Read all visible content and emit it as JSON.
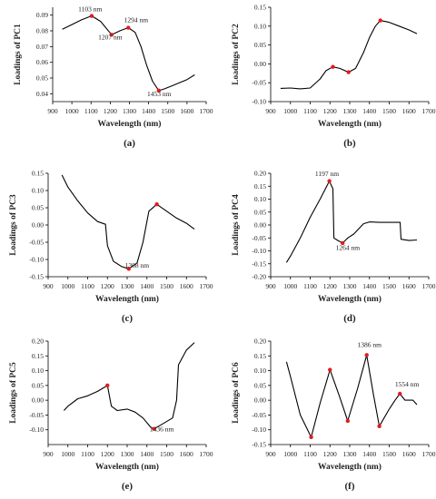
{
  "figure": {
    "subfigure_labels": [
      "(a)",
      "(b)",
      "(c)",
      "(d)",
      "(e)",
      "(f)"
    ]
  },
  "chart_data": [
    {
      "type": "line",
      "panel_label": "(a)",
      "xlabel": "Wavelength (nm)",
      "ylabel": "Loadings of PC1",
      "xlim": [
        900,
        1700
      ],
      "ylim": [
        0.035,
        0.095
      ],
      "xticks": [
        900,
        1000,
        1100,
        1200,
        1300,
        1400,
        1500,
        1600,
        1700
      ],
      "yticks": [
        0.04,
        0.05,
        0.06,
        0.07,
        0.08,
        0.09
      ],
      "ytick_labels": [
        "0.04",
        "0.05",
        "0.06",
        "0.07",
        "0.08",
        "0.09"
      ],
      "series": [
        {
          "x": [
            950,
            1000,
            1050,
            1103,
            1150,
            1207,
            1250,
            1294,
            1330,
            1360,
            1390,
            1420,
            1453,
            1480,
            1520,
            1560,
            1600,
            1640
          ],
          "y": [
            0.081,
            0.084,
            0.087,
            0.0895,
            0.086,
            0.0775,
            0.08,
            0.082,
            0.079,
            0.07,
            0.058,
            0.048,
            0.042,
            0.043,
            0.045,
            0.047,
            0.049,
            0.052
          ]
        }
      ],
      "markers": [
        {
          "x": 1103,
          "y": 0.0895
        },
        {
          "x": 1207,
          "y": 0.0775
        },
        {
          "x": 1294,
          "y": 0.082
        },
        {
          "x": 1453,
          "y": 0.042
        }
      ],
      "annotations": [
        {
          "text": "1103 nm",
          "x": 1095,
          "y": 0.0925
        },
        {
          "text": "1207 nm",
          "x": 1200,
          "y": 0.0745
        },
        {
          "text": "1294 nm",
          "x": 1335,
          "y": 0.0855
        },
        {
          "text": "1453 nm",
          "x": 1455,
          "y": 0.0385
        }
      ]
    },
    {
      "type": "line",
      "panel_label": "(b)",
      "xlabel": "Wavelength (nm)",
      "ylabel": "Loadings of PC2",
      "xlim": [
        900,
        1700
      ],
      "ylim": [
        -0.1,
        0.15
      ],
      "xticks": [
        900,
        1000,
        1100,
        1200,
        1300,
        1400,
        1500,
        1600,
        1700
      ],
      "yticks": [
        -0.1,
        -0.05,
        0,
        0.05,
        0.1,
        0.15
      ],
      "ytick_labels": [
        "-0.10",
        "-0.05",
        "0.00",
        "0.05",
        "0.10",
        "0.15"
      ],
      "series": [
        {
          "x": [
            950,
            1000,
            1050,
            1100,
            1150,
            1180,
            1215,
            1250,
            1294,
            1330,
            1370,
            1400,
            1430,
            1455,
            1500,
            1550,
            1600,
            1640
          ],
          "y": [
            -0.065,
            -0.064,
            -0.066,
            -0.064,
            -0.04,
            -0.018,
            -0.008,
            -0.012,
            -0.022,
            -0.012,
            0.03,
            0.07,
            0.1,
            0.115,
            0.11,
            0.1,
            0.09,
            0.08
          ]
        }
      ],
      "markers": [
        {
          "x": 1215,
          "y": -0.008
        },
        {
          "x": 1294,
          "y": -0.022
        },
        {
          "x": 1455,
          "y": 0.115
        }
      ],
      "annotations": []
    },
    {
      "type": "line",
      "panel_label": "(c)",
      "xlabel": "Wavelength (nm)",
      "ylabel": "Loadings of PC3",
      "xlim": [
        900,
        1700
      ],
      "ylim": [
        -0.15,
        0.15
      ],
      "xticks": [
        900,
        1000,
        1100,
        1200,
        1300,
        1400,
        1500,
        1600,
        1700
      ],
      "yticks": [
        -0.15,
        -0.1,
        -0.05,
        0,
        0.05,
        0.1,
        0.15
      ],
      "ytick_labels": [
        "-0.15",
        "-0.10",
        "-0.05",
        "0.00",
        "0.05",
        "0.10",
        "0.15"
      ],
      "series": [
        {
          "x": [
            970,
            1000,
            1050,
            1100,
            1150,
            1190,
            1200,
            1230,
            1270,
            1308,
            1350,
            1380,
            1410,
            1450,
            1500,
            1550,
            1600,
            1640
          ],
          "y": [
            0.145,
            0.11,
            0.07,
            0.035,
            0.01,
            0.002,
            -0.06,
            -0.105,
            -0.12,
            -0.127,
            -0.11,
            -0.05,
            0.04,
            0.06,
            0.04,
            0.02,
            0.005,
            -0.012
          ]
        }
      ],
      "markers": [
        {
          "x": 1308,
          "y": -0.127
        },
        {
          "x": 1450,
          "y": 0.06
        }
      ],
      "annotations": [
        {
          "text": "1308 nm",
          "x": 1350,
          "y": -0.124
        }
      ]
    },
    {
      "type": "line",
      "panel_label": "(d)",
      "xlabel": "Wavelength (nm)",
      "ylabel": "Loadings of PC4",
      "xlim": [
        900,
        1700
      ],
      "ylim": [
        -0.2,
        0.2
      ],
      "xticks": [
        900,
        1000,
        1100,
        1200,
        1300,
        1400,
        1500,
        1600,
        1700
      ],
      "yticks": [
        -0.2,
        -0.15,
        -0.1,
        -0.05,
        0,
        0.05,
        0.1,
        0.15,
        0.2
      ],
      "ytick_labels": [
        "-0.20",
        "-0.15",
        "-0.10",
        "-0.05",
        "0.00",
        "0.05",
        "0.10",
        "0.15",
        "0.20"
      ],
      "series": [
        {
          "x": [
            980,
            1000,
            1050,
            1100,
            1150,
            1197,
            1215,
            1220,
            1240,
            1264,
            1290,
            1320,
            1370,
            1400,
            1450,
            1500,
            1555,
            1560,
            1600,
            1640
          ],
          "y": [
            -0.145,
            -0.12,
            -0.05,
            0.03,
            0.1,
            0.17,
            0.14,
            -0.05,
            -0.06,
            -0.07,
            -0.05,
            -0.035,
            0.005,
            0.012,
            0.01,
            0.01,
            0.01,
            -0.055,
            -0.06,
            -0.058
          ]
        }
      ],
      "markers": [
        {
          "x": 1197,
          "y": 0.17
        },
        {
          "x": 1264,
          "y": -0.07
        }
      ],
      "annotations": [
        {
          "text": "1197 nm",
          "x": 1185,
          "y": 0.19
        },
        {
          "text": "1264 nm",
          "x": 1290,
          "y": -0.097
        }
      ]
    },
    {
      "type": "line",
      "panel_label": "(e)",
      "xlabel": "Wavelength (nm)",
      "ylabel": "Loadings of PC5",
      "xlim": [
        900,
        1700
      ],
      "ylim": [
        -0.15,
        0.2
      ],
      "xticks": [
        900,
        1000,
        1100,
        1200,
        1300,
        1400,
        1500,
        1600,
        1700
      ],
      "yticks": [
        -0.1,
        -0.05,
        0,
        0.05,
        0.1,
        0.15,
        0.2
      ],
      "ytick_labels": [
        "-0.10",
        "-0.05",
        "0.00",
        "0.05",
        "0.10",
        "0.15",
        "0.20"
      ],
      "series": [
        {
          "x": [
            980,
            1000,
            1050,
            1100,
            1150,
            1200,
            1220,
            1250,
            1300,
            1340,
            1380,
            1420,
            1436,
            1480,
            1530,
            1550,
            1560,
            1600,
            1640
          ],
          "y": [
            -0.035,
            -0.02,
            0.005,
            0.015,
            0.03,
            0.05,
            -0.02,
            -0.035,
            -0.03,
            -0.04,
            -0.06,
            -0.092,
            -0.097,
            -0.08,
            -0.06,
            0.0,
            0.12,
            0.17,
            0.195
          ]
        }
      ],
      "markers": [
        {
          "x": 1200,
          "y": 0.05
        },
        {
          "x": 1436,
          "y": -0.097
        }
      ],
      "annotations": [
        {
          "text": "1436 nm",
          "x": 1475,
          "y": -0.105
        }
      ]
    },
    {
      "type": "line",
      "panel_label": "(f)",
      "xlabel": "Wavelength (nm)",
      "ylabel": "Loadings of PC6",
      "xlim": [
        900,
        1700
      ],
      "ylim": [
        -0.15,
        0.2
      ],
      "xticks": [
        900,
        1000,
        1100,
        1200,
        1300,
        1400,
        1500,
        1600,
        1700
      ],
      "yticks": [
        -0.15,
        -0.1,
        -0.05,
        0,
        0.05,
        0.1,
        0.15,
        0.2
      ],
      "ytick_labels": [
        "-0.15",
        "-0.10",
        "-0.05",
        "0.00",
        "0.05",
        "0.10",
        "0.15",
        "0.20"
      ],
      "series": [
        {
          "x": [
            980,
            1000,
            1050,
            1105,
            1150,
            1200,
            1250,
            1290,
            1340,
            1386,
            1420,
            1450,
            1500,
            1530,
            1554,
            1580,
            1620,
            1640
          ],
          "y": [
            0.13,
            0.08,
            -0.05,
            -0.125,
            -0.01,
            0.103,
            0.01,
            -0.07,
            0.04,
            0.153,
            0.02,
            -0.088,
            -0.03,
            0.0,
            0.022,
            0.0,
            0.0,
            -0.015
          ]
        }
      ],
      "markers": [
        {
          "x": 1105,
          "y": -0.125
        },
        {
          "x": 1200,
          "y": 0.103
        },
        {
          "x": 1290,
          "y": -0.07
        },
        {
          "x": 1386,
          "y": 0.153
        },
        {
          "x": 1450,
          "y": -0.088
        },
        {
          "x": 1554,
          "y": 0.022
        }
      ],
      "annotations": [
        {
          "text": "1386 nm",
          "x": 1400,
          "y": 0.18
        },
        {
          "text": "1554 nm",
          "x": 1590,
          "y": 0.047
        }
      ]
    }
  ]
}
